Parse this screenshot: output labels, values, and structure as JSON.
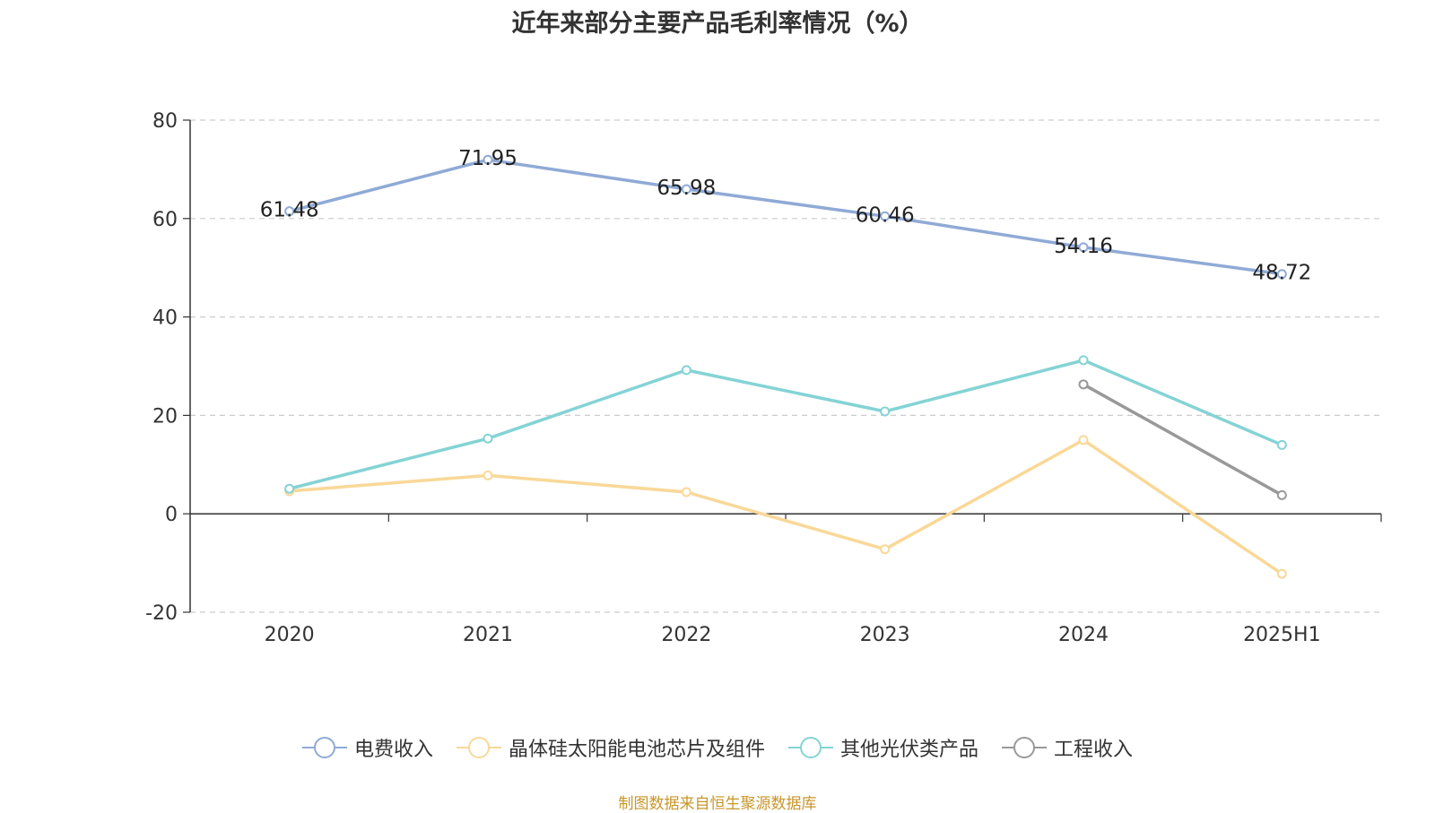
{
  "title": "近年来部分主要产品毛利率情况（%）",
  "source": "制图数据来自恒生聚源数据库",
  "chart_data": {
    "type": "line",
    "title": "近年来部分主要产品毛利率情况（%）",
    "categories": [
      "2020",
      "2021",
      "2022",
      "2023",
      "2024",
      "2025H1"
    ],
    "ylim": [
      -20,
      80
    ],
    "yticks": [
      -20,
      0,
      20,
      40,
      60,
      80
    ],
    "grid": true,
    "legend_position": "bottom",
    "series": [
      {
        "name": "电费收入",
        "color": "#8faad6",
        "values": [
          61.48,
          71.95,
          65.98,
          60.46,
          54.16,
          48.72
        ],
        "labels": [
          "61.48",
          "71.95",
          "65.98",
          "60.46",
          "54.16",
          "48.72"
        ]
      },
      {
        "name": "晶体硅太阳能电池芯片及组件",
        "color": "#f9d898",
        "values": [
          4.6,
          7.8,
          4.4,
          -7.2,
          15.0,
          -12.2
        ]
      },
      {
        "name": "其他光伏类产品",
        "color": "#84d3d5",
        "values": [
          5.1,
          15.3,
          29.2,
          20.8,
          31.2,
          14.0
        ]
      },
      {
        "name": "工程收入",
        "color": "#999999",
        "values": [
          null,
          null,
          null,
          null,
          26.3,
          3.8
        ]
      }
    ]
  }
}
